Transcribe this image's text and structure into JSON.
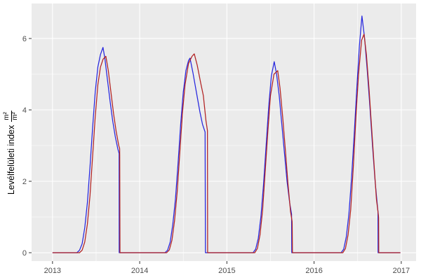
{
  "chart": {
    "ylabel": {
      "text": "Levélfelületi index",
      "frac_numerator": "m²",
      "frac_denominator": "m²"
    }
  },
  "chart_data": {
    "type": "line",
    "title": "",
    "xlabel": "",
    "ylabel": "Levélfelületi index (m²/m²)",
    "x_ticks": [
      2013,
      2014,
      2015,
      2016,
      2017
    ],
    "x_minor_ticks": [
      2013.5,
      2014.5,
      2015.5,
      2016.5
    ],
    "y_ticks": [
      0,
      2,
      4,
      6
    ],
    "y_minor_ticks": [
      1,
      3,
      5
    ],
    "xlim": [
      2012.76,
      2017.17
    ],
    "ylim": [
      -0.235,
      6.98
    ],
    "grid": true,
    "legend": false,
    "panel_bg": "#EBEBEB",
    "grid_color": "#FFFFFF",
    "tick_color": "#333333",
    "tick_label_color": "#4D4D4D",
    "series": [
      {
        "name": "blue-series",
        "color": "#2626DE",
        "points": [
          [
            2013.0,
            0
          ],
          [
            2013.28,
            0
          ],
          [
            2013.31,
            0.07
          ],
          [
            2013.34,
            0.25
          ],
          [
            2013.37,
            0.7
          ],
          [
            2013.4,
            1.4
          ],
          [
            2013.43,
            2.4
          ],
          [
            2013.46,
            3.5
          ],
          [
            2013.49,
            4.5
          ],
          [
            2013.52,
            5.2
          ],
          [
            2013.55,
            5.55
          ],
          [
            2013.579,
            5.75
          ],
          [
            2013.6,
            5.45
          ],
          [
            2013.63,
            4.85
          ],
          [
            2013.66,
            4.25
          ],
          [
            2013.69,
            3.7
          ],
          [
            2013.72,
            3.25
          ],
          [
            2013.75,
            2.9
          ],
          [
            2013.764,
            2.78
          ],
          [
            2013.765,
            0
          ],
          [
            2014.29,
            0
          ],
          [
            2014.32,
            0.07
          ],
          [
            2014.35,
            0.3
          ],
          [
            2014.38,
            0.8
          ],
          [
            2014.41,
            1.5
          ],
          [
            2014.44,
            2.5
          ],
          [
            2014.47,
            3.6
          ],
          [
            2014.5,
            4.5
          ],
          [
            2014.53,
            5.1
          ],
          [
            2014.56,
            5.38
          ],
          [
            2014.577,
            5.45
          ],
          [
            2014.61,
            5.05
          ],
          [
            2014.65,
            4.5
          ],
          [
            2014.69,
            3.95
          ],
          [
            2014.72,
            3.6
          ],
          [
            2014.75,
            3.38
          ],
          [
            2014.754,
            0
          ],
          [
            2015.3,
            0
          ],
          [
            2015.33,
            0.1
          ],
          [
            2015.36,
            0.4
          ],
          [
            2015.39,
            1.0
          ],
          [
            2015.42,
            1.9
          ],
          [
            2015.45,
            3.0
          ],
          [
            2015.48,
            4.1
          ],
          [
            2015.51,
            4.95
          ],
          [
            2015.543,
            5.35
          ],
          [
            2015.57,
            5.0
          ],
          [
            2015.6,
            4.4
          ],
          [
            2015.63,
            3.6
          ],
          [
            2015.66,
            2.8
          ],
          [
            2015.69,
            2.0
          ],
          [
            2015.72,
            1.4
          ],
          [
            2015.742,
            1.08
          ],
          [
            2015.744,
            0
          ],
          [
            2016.31,
            0
          ],
          [
            2016.34,
            0.1
          ],
          [
            2016.37,
            0.45
          ],
          [
            2016.4,
            1.1
          ],
          [
            2016.43,
            2.1
          ],
          [
            2016.46,
            3.3
          ],
          [
            2016.49,
            4.6
          ],
          [
            2016.52,
            5.8
          ],
          [
            2016.549,
            6.63
          ],
          [
            2016.58,
            6.0
          ],
          [
            2016.61,
            5.1
          ],
          [
            2016.64,
            4.1
          ],
          [
            2016.67,
            3.0
          ],
          [
            2016.7,
            2.0
          ],
          [
            2016.725,
            1.35
          ],
          [
            2016.733,
            1.15
          ],
          [
            2016.734,
            0
          ],
          [
            2016.99,
            0
          ]
        ]
      },
      {
        "name": "red-series",
        "color": "#B22222",
        "points": [
          [
            2013.0,
            0
          ],
          [
            2013.31,
            0
          ],
          [
            2013.34,
            0.07
          ],
          [
            2013.37,
            0.3
          ],
          [
            2013.4,
            0.8
          ],
          [
            2013.43,
            1.6
          ],
          [
            2013.46,
            2.7
          ],
          [
            2013.49,
            3.8
          ],
          [
            2013.52,
            4.7
          ],
          [
            2013.55,
            5.2
          ],
          [
            2013.58,
            5.42
          ],
          [
            2013.612,
            5.5
          ],
          [
            2013.64,
            5.1
          ],
          [
            2013.67,
            4.5
          ],
          [
            2013.7,
            3.9
          ],
          [
            2013.73,
            3.4
          ],
          [
            2013.76,
            3.0
          ],
          [
            2013.77,
            2.92
          ],
          [
            2013.771,
            2.72
          ],
          [
            2013.774,
            0
          ],
          [
            2014.31,
            0
          ],
          [
            2014.34,
            0.08
          ],
          [
            2014.37,
            0.35
          ],
          [
            2014.4,
            0.9
          ],
          [
            2014.43,
            1.7
          ],
          [
            2014.46,
            2.8
          ],
          [
            2014.49,
            3.9
          ],
          [
            2014.52,
            4.7
          ],
          [
            2014.56,
            5.3
          ],
          [
            2014.6,
            5.5
          ],
          [
            2014.626,
            5.57
          ],
          [
            2014.66,
            5.25
          ],
          [
            2014.7,
            4.75
          ],
          [
            2014.73,
            4.4
          ],
          [
            2014.76,
            3.7
          ],
          [
            2014.777,
            3.42
          ],
          [
            2014.779,
            0
          ],
          [
            2015.32,
            0
          ],
          [
            2015.35,
            0.12
          ],
          [
            2015.38,
            0.5
          ],
          [
            2015.41,
            1.2
          ],
          [
            2015.44,
            2.3
          ],
          [
            2015.47,
            3.4
          ],
          [
            2015.5,
            4.4
          ],
          [
            2015.54,
            5.0
          ],
          [
            2015.583,
            5.1
          ],
          [
            2015.61,
            4.6
          ],
          [
            2015.64,
            3.8
          ],
          [
            2015.67,
            2.9
          ],
          [
            2015.7,
            1.95
          ],
          [
            2015.73,
            1.15
          ],
          [
            2015.748,
            0.88
          ],
          [
            2015.749,
            0.8
          ],
          [
            2015.752,
            0
          ],
          [
            2016.33,
            0
          ],
          [
            2016.36,
            0.12
          ],
          [
            2016.39,
            0.5
          ],
          [
            2016.42,
            1.2
          ],
          [
            2016.45,
            2.4
          ],
          [
            2016.48,
            3.8
          ],
          [
            2016.51,
            5.0
          ],
          [
            2016.545,
            5.95
          ],
          [
            2016.573,
            6.12
          ],
          [
            2016.6,
            5.55
          ],
          [
            2016.63,
            4.6
          ],
          [
            2016.66,
            3.5
          ],
          [
            2016.69,
            2.4
          ],
          [
            2016.715,
            1.5
          ],
          [
            2016.738,
            1.05
          ],
          [
            2016.74,
            0.98
          ],
          [
            2016.742,
            0
          ],
          [
            2016.99,
            0
          ]
        ]
      }
    ]
  }
}
